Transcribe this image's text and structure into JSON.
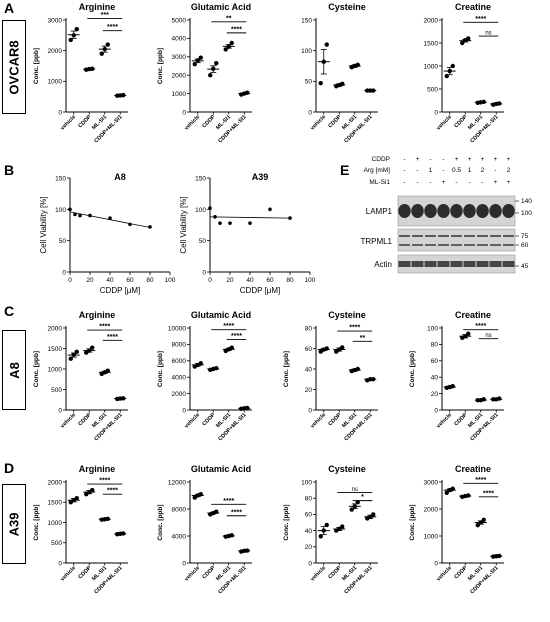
{
  "panel_labels": {
    "A": "A",
    "B": "B",
    "C": "C",
    "D": "D",
    "E": "E"
  },
  "row_labels": {
    "A": "OVCAR8",
    "C": "A8",
    "D": "A39"
  },
  "colors": {
    "bar": "#000000",
    "band": "#1a1a1a",
    "blot_bg": "#d4d4d4"
  },
  "chart_data": [
    {
      "id": "A-arg",
      "row": "A",
      "col": 0,
      "type": "scatter",
      "title": "Arginine",
      "ylabel": "Conc. [ppb]",
      "categories": [
        "vehicle",
        "CDDP",
        "ML-SI1",
        "CDDP+ML-SI1"
      ],
      "ylim": [
        0,
        3000
      ],
      "yticks": [
        0,
        1000,
        2000,
        3000
      ],
      "ytick_labels": [
        "0",
        "1000",
        "2000",
        "3000"
      ],
      "points": [
        [
          2350,
          2500,
          2700
        ],
        [
          1380,
          1400,
          1410
        ],
        [
          1900,
          2050,
          2200
        ],
        [
          530,
          540,
          550
        ]
      ],
      "means": [
        2520,
        1400,
        2050,
        540
      ],
      "errors": [
        120,
        20,
        100,
        5
      ],
      "sig": [
        {
          "from": 1,
          "to": 3,
          "label": "***",
          "y": 3050
        },
        {
          "from": 2,
          "to": 3,
          "label": "****",
          "y": 2650
        }
      ]
    },
    {
      "id": "A-glu",
      "row": "A",
      "col": 1,
      "type": "scatter",
      "title": "Glutamic Acid",
      "ylabel": "Conc. [ppb]",
      "categories": [
        "vehicle",
        "CDDP",
        "ML-SI1",
        "CDDP+ML-SI1"
      ],
      "ylim": [
        0,
        5000
      ],
      "yticks": [
        0,
        1000,
        2000,
        3000,
        4000,
        5000
      ],
      "ytick_labels": [
        "0",
        "1000",
        "2000",
        "3000",
        "4000",
        "5000"
      ],
      "points": [
        [
          2600,
          2800,
          2950
        ],
        [
          2000,
          2350,
          2650
        ],
        [
          3400,
          3550,
          3750
        ],
        [
          950,
          1000,
          1050
        ]
      ],
      "means": [
        2780,
        2330,
        3570,
        1000
      ],
      "errors": [
        100,
        180,
        100,
        30
      ],
      "sig": [
        {
          "from": 1,
          "to": 3,
          "label": "**",
          "y": 4900
        },
        {
          "from": 2,
          "to": 3,
          "label": "****",
          "y": 4300
        }
      ]
    },
    {
      "id": "A-cys",
      "row": "A",
      "col": 2,
      "type": "scatter",
      "title": "Cysteine",
      "ylabel": "",
      "categories": [
        "vehicle",
        "CDDP",
        "ML-SI1",
        "CDDP+ML-SI1"
      ],
      "ylim": [
        0,
        150
      ],
      "yticks": [
        0,
        50,
        100,
        150
      ],
      "ytick_labels": [
        "0",
        "50",
        "100",
        "150"
      ],
      "points": [
        [
          47,
          82,
          110
        ],
        [
          42,
          44,
          46
        ],
        [
          73,
          75,
          77
        ],
        [
          35,
          35,
          35
        ]
      ],
      "means": [
        82,
        44,
        75,
        35
      ],
      "errors": [
        20,
        2,
        2,
        1
      ],
      "sig": []
    },
    {
      "id": "A-cre",
      "row": "A",
      "col": 3,
      "type": "scatter",
      "title": "Creatine",
      "ylabel": "",
      "categories": [
        "vehicle",
        "CDDP",
        "ML-SI1",
        "CDDP+ML-SI1"
      ],
      "ylim": [
        0,
        2000
      ],
      "yticks": [
        0,
        500,
        1000,
        1500,
        2000
      ],
      "ytick_labels": [
        "0",
        "500",
        "1000",
        "1500",
        "2000"
      ],
      "points": [
        [
          780,
          890,
          1000
        ],
        [
          1500,
          1560,
          1600
        ],
        [
          200,
          210,
          220
        ],
        [
          160,
          175,
          185
        ]
      ],
      "means": [
        890,
        1550,
        210,
        175
      ],
      "errors": [
        80,
        30,
        5,
        10
      ],
      "sig": [
        {
          "from": 1,
          "to": 3,
          "label": "****",
          "y": 1950
        },
        {
          "from": 2,
          "to": 3,
          "label": "ns",
          "y": 1650
        }
      ]
    },
    {
      "id": "B-a8",
      "row": "B",
      "col": 0,
      "type": "line",
      "title": "A8",
      "ylabel": "Cell Viability [%]",
      "xlabel": "CDDP [μM]",
      "xlim": [
        0,
        100
      ],
      "ylim": [
        0,
        150
      ],
      "xticks": [
        0,
        20,
        40,
        60,
        80,
        100
      ],
      "yticks": [
        0,
        50,
        100,
        150
      ],
      "x": [
        0,
        5,
        10,
        20,
        40,
        60,
        80
      ],
      "y": [
        100,
        92,
        90,
        90,
        86,
        76,
        72
      ],
      "fit_x": [
        0,
        80
      ],
      "fit_y": [
        96,
        71
      ]
    },
    {
      "id": "B-a39",
      "row": "B",
      "col": 1,
      "type": "line",
      "title": "A39",
      "ylabel": "Cell Viability [%]",
      "xlabel": "CDDP [μM]",
      "xlim": [
        0,
        100
      ],
      "ylim": [
        0,
        150
      ],
      "xticks": [
        0,
        20,
        40,
        60,
        80,
        100
      ],
      "yticks": [
        0,
        50,
        100,
        150
      ],
      "x": [
        0,
        5,
        10,
        20,
        40,
        60,
        80
      ],
      "y": [
        102,
        88,
        78,
        78,
        78,
        100,
        86
      ],
      "fit_x": [
        0,
        80
      ],
      "fit_y": [
        88,
        86
      ]
    },
    {
      "id": "C-arg",
      "row": "C",
      "col": 0,
      "type": "scatter",
      "title": "Arginine",
      "ylabel": "Conc. [ppb]",
      "categories": [
        "vehicle",
        "CDDP",
        "ML-SI1",
        "CDDP+ML-SI1"
      ],
      "ylim": [
        0,
        2000
      ],
      "yticks": [
        0,
        500,
        1000,
        1500,
        2000
      ],
      "ytick_labels": [
        "0",
        "500",
        "1000",
        "1500",
        "2000"
      ],
      "points": [
        [
          1250,
          1350,
          1420
        ],
        [
          1400,
          1450,
          1520
        ],
        [
          880,
          920,
          960
        ],
        [
          270,
          280,
          285
        ]
      ],
      "means": [
        1340,
        1450,
        920,
        280
      ],
      "errors": [
        50,
        40,
        25,
        5
      ],
      "sig": [
        {
          "from": 1,
          "to": 3,
          "label": "****",
          "y": 1950
        },
        {
          "from": 2,
          "to": 3,
          "label": "****",
          "y": 1700
        }
      ]
    },
    {
      "id": "C-glu",
      "row": "C",
      "col": 1,
      "type": "scatter",
      "title": "Glutamic Acid",
      "ylabel": "Conc. [ppb]",
      "categories": [
        "vehicle",
        "CDDP",
        "ML-SI1",
        "CDDP+ML-SI1"
      ],
      "ylim": [
        0,
        10000
      ],
      "yticks": [
        0,
        2000,
        4000,
        6000,
        8000,
        10000
      ],
      "ytick_labels": [
        "0",
        "2000",
        "4000",
        "6000",
        "8000",
        "10000"
      ],
      "points": [
        [
          5300,
          5500,
          5700
        ],
        [
          4900,
          5000,
          5100
        ],
        [
          7200,
          7400,
          7600
        ],
        [
          150,
          200,
          250
        ]
      ],
      "means": [
        5500,
        5000,
        7400,
        200
      ],
      "errors": [
        150,
        60,
        130,
        40
      ],
      "sig": [
        {
          "from": 1,
          "to": 3,
          "label": "****",
          "y": 9800
        },
        {
          "from": 2,
          "to": 3,
          "label": "****",
          "y": 8600
        }
      ]
    },
    {
      "id": "C-cys",
      "row": "C",
      "col": 2,
      "type": "scatter",
      "title": "Cysteine",
      "ylabel": "Conc. [ppb]",
      "categories": [
        "vehicle",
        "CDDP",
        "ML-SI1",
        "CDDP+ML-SI1"
      ],
      "ylim": [
        0,
        80
      ],
      "yticks": [
        0,
        20,
        40,
        60,
        80
      ],
      "ytick_labels": [
        "0",
        "20",
        "40",
        "60",
        "80"
      ],
      "points": [
        [
          57,
          59,
          60
        ],
        [
          57,
          59,
          61
        ],
        [
          38,
          39,
          40
        ],
        [
          29,
          30,
          30
        ]
      ],
      "means": [
        59,
        59,
        39,
        30
      ],
      "errors": [
        1,
        1.5,
        1,
        0.5
      ],
      "sig": [
        {
          "from": 1,
          "to": 3,
          "label": "****",
          "y": 77
        },
        {
          "from": 2,
          "to": 3,
          "label": "**",
          "y": 67
        }
      ]
    },
    {
      "id": "C-cre",
      "row": "C",
      "col": 3,
      "type": "scatter",
      "title": "Creatine",
      "ylabel": "Conc. [ppb]",
      "categories": [
        "vehicle",
        "CDDP",
        "ML-SI1",
        "CDDP+ML-SI1"
      ],
      "ylim": [
        0,
        100
      ],
      "yticks": [
        0,
        20,
        40,
        60,
        80,
        100
      ],
      "ytick_labels": [
        "0",
        "20",
        "40",
        "60",
        "80",
        "100"
      ],
      "points": [
        [
          27,
          28,
          29
        ],
        [
          88,
          90,
          93
        ],
        [
          12,
          12,
          13
        ],
        [
          13,
          13,
          14
        ]
      ],
      "means": [
        28,
        90,
        12,
        13
      ],
      "errors": [
        1,
        2,
        0.5,
        0.5
      ],
      "sig": [
        {
          "from": 1,
          "to": 3,
          "label": "****",
          "y": 98
        },
        {
          "from": 2,
          "to": 3,
          "label": "ns",
          "y": 87
        }
      ]
    },
    {
      "id": "D-arg",
      "row": "D",
      "col": 0,
      "type": "scatter",
      "title": "Arginine",
      "ylabel": "Conc. [ppb]",
      "categories": [
        "vehicle",
        "CDDP",
        "ML-SI1",
        "CDDP+ML-SI1"
      ],
      "ylim": [
        0,
        2000
      ],
      "yticks": [
        0,
        500,
        1000,
        1500,
        2000
      ],
      "ytick_labels": [
        "0",
        "500",
        "1000",
        "1500",
        "2000"
      ],
      "points": [
        [
          1500,
          1550,
          1600
        ],
        [
          1700,
          1750,
          1800
        ],
        [
          1070,
          1080,
          1090
        ],
        [
          710,
          720,
          730
        ]
      ],
      "means": [
        1550,
        1750,
        1080,
        720
      ],
      "errors": [
        40,
        40,
        10,
        10
      ],
      "sig": [
        {
          "from": 1,
          "to": 3,
          "label": "****",
          "y": 1950
        },
        {
          "from": 2,
          "to": 3,
          "label": "****",
          "y": 1700
        }
      ]
    },
    {
      "id": "D-glu",
      "row": "D",
      "col": 1,
      "type": "scatter",
      "title": "Glutamic Acid",
      "ylabel": "Conc. [ppb]",
      "categories": [
        "vehicle",
        "CDDP",
        "ML-SI1",
        "CDDP+ML-SI1"
      ],
      "ylim": [
        0,
        12000
      ],
      "yticks": [
        0,
        4000,
        8000,
        12000
      ],
      "ytick_labels": [
        "0",
        "4000",
        "8000",
        "12000"
      ],
      "points": [
        [
          9700,
          10000,
          10200
        ],
        [
          7200,
          7400,
          7600
        ],
        [
          3900,
          4000,
          4100
        ],
        [
          1700,
          1800,
          1850
        ]
      ],
      "means": [
        10000,
        7400,
        4000,
        1800
      ],
      "errors": [
        150,
        130,
        60,
        40
      ],
      "sig": [
        {
          "from": 1,
          "to": 3,
          "label": "****",
          "y": 8700
        },
        {
          "from": 2,
          "to": 3,
          "label": "****",
          "y": 7000
        }
      ]
    },
    {
      "id": "D-cys",
      "row": "D",
      "col": 2,
      "type": "scatter",
      "title": "Cysteine",
      "ylabel": "Conc. [ppb]",
      "categories": [
        "vehicle",
        "CDDP",
        "ML-SI1",
        "CDDP+ML-SI1"
      ],
      "ylim": [
        0,
        100
      ],
      "yticks": [
        0,
        20,
        40,
        60,
        80,
        100
      ],
      "ytick_labels": [
        "0",
        "20",
        "40",
        "60",
        "80",
        "100"
      ],
      "points": [
        [
          33,
          40,
          47
        ],
        [
          40,
          42,
          45
        ],
        [
          66,
          70,
          75
        ],
        [
          55,
          57,
          60
        ]
      ],
      "means": [
        40,
        42,
        70,
        57
      ],
      "errors": [
        5,
        2,
        3,
        2
      ],
      "sig": [
        {
          "from": 1,
          "to": 3,
          "label": "ns",
          "y": 87
        },
        {
          "from": 2,
          "to": 3,
          "label": "*",
          "y": 77
        }
      ]
    },
    {
      "id": "D-cre",
      "row": "D",
      "col": 3,
      "type": "scatter",
      "title": "Creatine",
      "ylabel": "Conc. [ppb]",
      "categories": [
        "vehicle",
        "CDDP",
        "ML-SI1",
        "CDDP+ML-SI1"
      ],
      "ylim": [
        0,
        3000
      ],
      "yticks": [
        0,
        1000,
        2000,
        3000
      ],
      "ytick_labels": [
        "0",
        "1000",
        "2000",
        "3000"
      ],
      "points": [
        [
          2600,
          2700,
          2750
        ],
        [
          2450,
          2480,
          2500
        ],
        [
          1400,
          1500,
          1600
        ],
        [
          240,
          250,
          260
        ]
      ],
      "means": [
        2700,
        2480,
        1500,
        250
      ],
      "errors": [
        40,
        15,
        60,
        5
      ],
      "sig": [
        {
          "from": 1,
          "to": 3,
          "label": "****",
          "y": 2950
        },
        {
          "from": 2,
          "to": 3,
          "label": "****",
          "y": 2450
        }
      ]
    }
  ],
  "blot": {
    "rows": [
      {
        "label": "CDDP",
        "values": [
          "-",
          "+",
          "-",
          "-",
          "+",
          "+",
          "+",
          "+",
          "+"
        ]
      },
      {
        "label": "Arg [mM]",
        "values": [
          "-",
          "-",
          "1",
          "-",
          "0.5",
          "1",
          "2",
          "-",
          "2"
        ]
      },
      {
        "label": "ML-Si1",
        "values": [
          "-",
          "-",
          "-",
          "+",
          "-",
          "-",
          "-",
          "+",
          "+"
        ]
      }
    ],
    "proteins": [
      {
        "name": "LAMP1",
        "markers": [
          "140",
          "100"
        ]
      },
      {
        "name": "TRPML1",
        "markers": [
          "75",
          "60"
        ]
      },
      {
        "name": "Actin",
        "markers": [
          "45"
        ]
      }
    ]
  }
}
